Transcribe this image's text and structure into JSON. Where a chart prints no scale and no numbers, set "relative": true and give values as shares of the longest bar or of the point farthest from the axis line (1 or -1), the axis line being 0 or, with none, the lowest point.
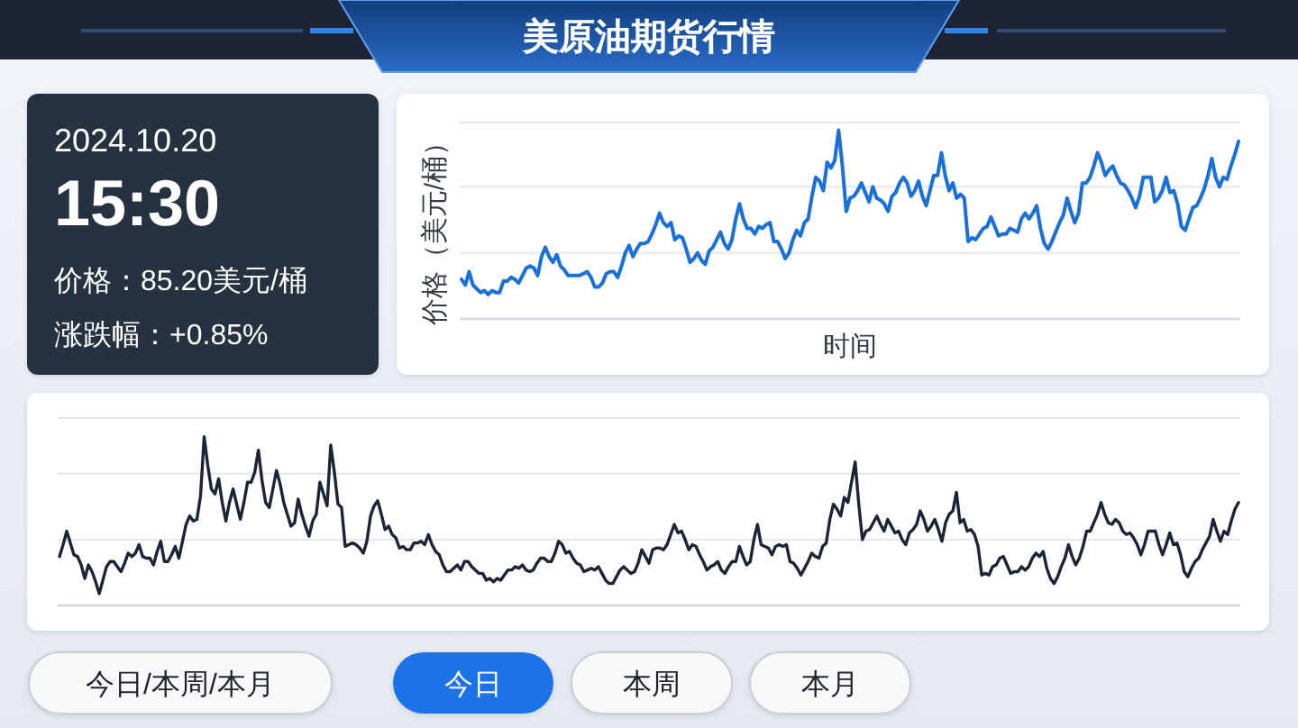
{
  "chart_data": [
    {
      "type": "other",
      "title": "美原油期货行情",
      "annotations": [
        "2024.10.20",
        "15:30",
        "价格：85.20美元/桶",
        "涨跌幅：+0.85%"
      ]
    },
    {
      "type": "line",
      "relative": true,
      "xlabel": "时间",
      "ylabel": "价格（美元/桶）",
      "ref_lines": [
        {
          "axis": "y",
          "value": 0.35,
          "color": "#e4e8ee"
        },
        {
          "axis": "y",
          "value": 0.7,
          "color": "#e4e8ee"
        },
        {
          "axis": "y",
          "value": 1.04,
          "color": "#e4e8ee"
        }
      ],
      "categories": [
        null,
        null,
        null,
        null,
        null,
        null,
        null,
        null,
        null,
        null,
        null,
        null,
        null,
        null,
        null,
        null,
        null,
        null,
        null,
        null,
        null,
        null,
        null,
        null,
        null,
        null,
        null,
        null,
        null,
        null,
        null,
        null,
        null,
        null,
        null,
        null,
        null,
        null,
        null,
        null,
        null,
        null,
        null,
        null,
        null,
        null,
        null,
        null,
        null,
        null,
        null,
        null,
        null,
        null,
        null,
        null,
        null,
        null,
        null,
        null,
        null,
        null,
        null,
        null,
        null,
        null,
        null,
        null,
        null,
        null,
        null,
        null,
        null,
        null,
        null,
        null,
        null,
        null,
        null,
        null,
        null,
        null,
        null,
        null,
        null,
        null,
        null,
        null,
        null,
        null,
        null,
        null,
        null,
        null,
        null,
        null,
        null,
        null,
        null,
        null,
        null,
        null,
        null,
        null,
        null,
        null,
        null,
        null,
        null,
        null,
        null,
        null,
        null,
        null,
        null,
        null,
        null,
        null,
        null,
        null,
        null,
        null,
        null,
        null,
        null,
        null,
        null,
        null,
        null,
        null,
        null,
        null,
        null,
        null,
        null,
        null,
        null,
        null,
        null,
        null,
        null,
        null,
        null,
        null,
        null,
        null,
        null,
        null,
        null,
        null,
        null,
        null,
        null,
        null,
        null,
        null,
        null,
        null,
        null,
        null,
        null,
        null,
        null,
        null,
        null,
        null,
        null,
        null,
        null,
        null,
        null,
        null,
        null,
        null,
        null,
        null,
        null,
        null,
        null,
        null,
        null,
        null,
        null,
        null,
        null,
        null,
        null,
        null,
        null,
        null,
        null,
        null,
        null,
        null,
        null,
        null,
        null,
        null,
        null,
        null,
        null,
        null,
        null,
        null,
        null
      ],
      "series": [
        {
          "color": "#1a6fd8",
          "values": [
            0.21,
            0.18,
            0.25,
            0.18,
            0.16,
            0.14,
            0.15,
            0.13,
            0.15,
            0.14,
            0.14,
            0.2,
            0.2,
            0.22,
            0.21,
            0.19,
            0.23,
            0.27,
            0.28,
            0.27,
            0.23,
            0.33,
            0.38,
            0.33,
            0.3,
            0.34,
            0.28,
            0.26,
            0.23,
            0.23,
            0.23,
            0.23,
            0.24,
            0.25,
            0.22,
            0.17,
            0.17,
            0.19,
            0.24,
            0.25,
            0.25,
            0.22,
            0.28,
            0.35,
            0.39,
            0.33,
            0.37,
            0.4,
            0.4,
            0.41,
            0.45,
            0.5,
            0.56,
            0.51,
            0.49,
            0.51,
            0.42,
            0.44,
            0.43,
            0.37,
            0.3,
            0.32,
            0.35,
            0.31,
            0.29,
            0.36,
            0.38,
            0.42,
            0.46,
            0.4,
            0.37,
            0.42,
            0.53,
            0.61,
            0.53,
            0.48,
            0.48,
            0.45,
            0.49,
            0.48,
            0.5,
            0.51,
            0.41,
            0.41,
            0.37,
            0.32,
            0.35,
            0.42,
            0.47,
            0.44,
            0.51,
            0.53,
            0.65,
            0.75,
            0.73,
            0.68,
            0.83,
            0.8,
            0.84,
            1.0,
            0.81,
            0.57,
            0.64,
            0.65,
            0.68,
            0.72,
            0.67,
            0.62,
            0.7,
            0.64,
            0.63,
            0.61,
            0.57,
            0.65,
            0.67,
            0.72,
            0.75,
            0.72,
            0.65,
            0.68,
            0.73,
            0.65,
            0.6,
            0.68,
            0.76,
            0.76,
            0.88,
            0.76,
            0.68,
            0.72,
            0.64,
            0.66,
            0.64,
            0.41,
            0.43,
            0.42,
            0.45,
            0.48,
            0.49,
            0.54,
            0.49,
            0.44,
            0.45,
            0.45,
            0.48,
            0.47,
            0.46,
            0.53,
            0.56,
            0.53,
            0.56,
            0.6,
            0.48,
            0.4,
            0.37,
            0.41,
            0.46,
            0.51,
            0.55,
            0.64,
            0.57,
            0.51,
            0.56,
            0.72,
            0.72,
            0.75,
            0.81,
            0.88,
            0.83,
            0.76,
            0.79,
            0.81,
            0.76,
            0.72,
            0.71,
            0.68,
            0.64,
            0.59,
            0.65,
            0.75,
            0.75,
            0.75,
            0.62,
            0.64,
            0.68,
            0.75,
            0.67,
            0.68,
            0.61,
            0.49,
            0.47,
            0.53,
            0.59,
            0.6,
            0.64,
            0.69,
            0.76,
            0.85,
            0.75,
            0.7,
            0.75,
            0.74,
            0.81,
            0.87,
            0.94
          ]
        }
      ]
    },
    {
      "type": "line",
      "relative": true,
      "ref_lines": [
        {
          "axis": "y",
          "value": 0.39,
          "color": "#e4e8ee"
        },
        {
          "axis": "y",
          "value": 0.78,
          "color": "#e4e8ee"
        },
        {
          "axis": "y",
          "value": 1.11,
          "color": "#e4e8ee"
        }
      ],
      "categories": [
        null,
        null,
        null,
        null,
        null,
        null,
        null,
        null,
        null,
        null,
        null,
        null,
        null,
        null,
        null,
        null,
        null,
        null,
        null,
        null,
        null,
        null,
        null,
        null,
        null,
        null,
        null,
        null,
        null,
        null,
        null,
        null,
        null,
        null,
        null,
        null,
        null,
        null,
        null,
        null,
        null,
        null,
        null,
        null,
        null,
        null,
        null,
        null,
        null,
        null,
        null,
        null,
        null,
        null,
        null,
        null,
        null,
        null,
        null,
        null,
        null,
        null,
        null,
        null,
        null,
        null,
        null,
        null,
        null,
        null,
        null,
        null,
        null,
        null,
        null,
        null,
        null,
        null,
        null,
        null,
        null,
        null,
        null,
        null,
        null,
        null,
        null,
        null,
        null,
        null,
        null,
        null,
        null,
        null,
        null,
        null,
        null,
        null,
        null,
        null,
        null,
        null,
        null,
        null,
        null,
        null,
        null,
        null,
        null,
        null,
        null,
        null,
        null,
        null,
        null,
        null,
        null,
        null,
        null,
        null,
        null,
        null,
        null,
        null,
        null,
        null,
        null,
        null,
        null,
        null,
        null,
        null,
        null,
        null,
        null,
        null,
        null,
        null,
        null,
        null,
        null,
        null,
        null,
        null,
        null,
        null,
        null,
        null,
        null,
        null,
        null,
        null,
        null,
        null,
        null,
        null,
        null,
        null,
        null,
        null,
        null,
        null,
        null,
        null,
        null,
        null,
        null,
        null,
        null,
        null,
        null,
        null,
        null,
        null,
        null,
        null,
        null,
        null,
        null,
        null,
        null,
        null,
        null,
        null,
        null,
        null,
        null,
        null,
        null,
        null,
        null,
        null,
        null,
        null,
        null,
        null,
        null,
        null,
        null,
        null,
        null,
        null,
        null,
        null,
        null,
        null,
        null,
        null,
        null,
        null,
        null,
        null,
        null,
        null,
        null,
        null,
        null,
        null,
        null,
        null,
        null,
        null,
        null,
        null,
        null,
        null,
        null,
        null,
        null,
        null,
        null,
        null,
        null,
        null,
        null,
        null,
        null,
        null,
        null,
        null,
        null,
        null,
        null,
        null,
        null,
        null,
        null,
        null,
        null,
        null,
        null,
        null,
        null,
        null,
        null,
        null,
        null,
        null,
        null,
        null,
        null,
        null,
        null,
        null,
        null,
        null,
        null,
        null,
        null,
        null,
        null,
        null,
        null,
        null,
        null,
        null,
        null,
        null,
        null,
        null,
        null,
        null,
        null,
        null,
        null,
        null,
        null,
        null,
        null,
        null,
        null,
        null,
        null,
        null,
        null,
        null,
        null,
        null,
        null,
        null,
        null,
        null,
        null,
        null,
        null,
        null,
        null,
        null,
        null,
        null,
        null,
        null,
        null,
        null,
        null,
        null,
        null,
        null,
        null,
        null,
        null,
        null,
        null,
        null,
        null,
        null,
        null
      ],
      "series": [
        {
          "color": "#1c2536",
          "values": [
            0.29,
            0.36,
            0.44,
            0.37,
            0.3,
            0.29,
            0.24,
            0.16,
            0.24,
            0.2,
            0.14,
            0.07,
            0.15,
            0.23,
            0.26,
            0.26,
            0.23,
            0.2,
            0.25,
            0.31,
            0.29,
            0.31,
            0.36,
            0.29,
            0.28,
            0.28,
            0.24,
            0.32,
            0.38,
            0.26,
            0.26,
            0.3,
            0.35,
            0.28,
            0.38,
            0.48,
            0.53,
            0.5,
            0.51,
            0.65,
            1.0,
            0.83,
            0.69,
            0.66,
            0.75,
            0.61,
            0.5,
            0.61,
            0.69,
            0.6,
            0.51,
            0.61,
            0.73,
            0.73,
            0.79,
            0.92,
            0.74,
            0.61,
            0.58,
            0.69,
            0.8,
            0.72,
            0.61,
            0.54,
            0.47,
            0.49,
            0.63,
            0.54,
            0.47,
            0.41,
            0.5,
            0.54,
            0.73,
            0.66,
            0.59,
            0.95,
            0.79,
            0.6,
            0.58,
            0.35,
            0.36,
            0.37,
            0.36,
            0.34,
            0.31,
            0.38,
            0.53,
            0.59,
            0.62,
            0.54,
            0.45,
            0.47,
            0.42,
            0.4,
            0.34,
            0.35,
            0.33,
            0.33,
            0.37,
            0.37,
            0.38,
            0.36,
            0.42,
            0.36,
            0.32,
            0.3,
            0.24,
            0.2,
            0.2,
            0.22,
            0.24,
            0.21,
            0.26,
            0.26,
            0.23,
            0.21,
            0.19,
            0.19,
            0.15,
            0.16,
            0.14,
            0.16,
            0.15,
            0.18,
            0.21,
            0.21,
            0.23,
            0.22,
            0.24,
            0.21,
            0.2,
            0.21,
            0.25,
            0.28,
            0.28,
            0.26,
            0.26,
            0.31,
            0.38,
            0.36,
            0.31,
            0.32,
            0.28,
            0.25,
            0.24,
            0.2,
            0.21,
            0.22,
            0.21,
            0.23,
            0.19,
            0.15,
            0.13,
            0.13,
            0.17,
            0.21,
            0.23,
            0.21,
            0.19,
            0.2,
            0.25,
            0.33,
            0.29,
            0.25,
            0.33,
            0.34,
            0.34,
            0.33,
            0.36,
            0.42,
            0.48,
            0.43,
            0.44,
            0.39,
            0.33,
            0.36,
            0.35,
            0.3,
            0.26,
            0.21,
            0.23,
            0.24,
            0.26,
            0.21,
            0.19,
            0.23,
            0.26,
            0.26,
            0.35,
            0.29,
            0.24,
            0.26,
            0.39,
            0.48,
            0.36,
            0.35,
            0.34,
            0.3,
            0.35,
            0.36,
            0.35,
            0.36,
            0.26,
            0.25,
            0.22,
            0.18,
            0.22,
            0.26,
            0.31,
            0.29,
            0.28,
            0.35,
            0.37,
            0.51,
            0.6,
            0.57,
            0.53,
            0.64,
            0.61,
            0.73,
            0.85,
            0.6,
            0.39,
            0.44,
            0.45,
            0.49,
            0.53,
            0.48,
            0.44,
            0.51,
            0.47,
            0.43,
            0.44,
            0.39,
            0.36,
            0.43,
            0.45,
            0.48,
            0.56,
            0.51,
            0.44,
            0.47,
            0.51,
            0.45,
            0.38,
            0.49,
            0.54,
            0.56,
            0.67,
            0.49,
            0.51,
            0.44,
            0.45,
            0.42,
            0.35,
            0.18,
            0.19,
            0.18,
            0.23,
            0.24,
            0.28,
            0.29,
            0.24,
            0.19,
            0.2,
            0.2,
            0.23,
            0.21,
            0.23,
            0.28,
            0.31,
            0.29,
            0.32,
            0.22,
            0.16,
            0.13,
            0.17,
            0.23,
            0.28,
            0.36,
            0.29,
            0.24,
            0.28,
            0.35,
            0.44,
            0.44,
            0.49,
            0.54,
            0.61,
            0.54,
            0.49,
            0.48,
            0.51,
            0.49,
            0.44,
            0.42,
            0.43,
            0.4,
            0.36,
            0.3,
            0.36,
            0.44,
            0.44,
            0.44,
            0.36,
            0.3,
            0.36,
            0.43,
            0.36,
            0.37,
            0.3,
            0.2,
            0.17,
            0.22,
            0.26,
            0.28,
            0.33,
            0.37,
            0.41,
            0.51,
            0.44,
            0.38,
            0.44,
            0.42,
            0.5,
            0.57,
            0.61
          ]
        }
      ]
    },
    {
      "type": "other",
      "annotations": [
        "今日/本周/本月",
        "今日",
        "本周",
        "本月"
      ],
      "colors": [
        "#f7f8fa",
        "#1a73e8",
        "#f7f8fa",
        "#f7f8fa"
      ]
    }
  ]
}
